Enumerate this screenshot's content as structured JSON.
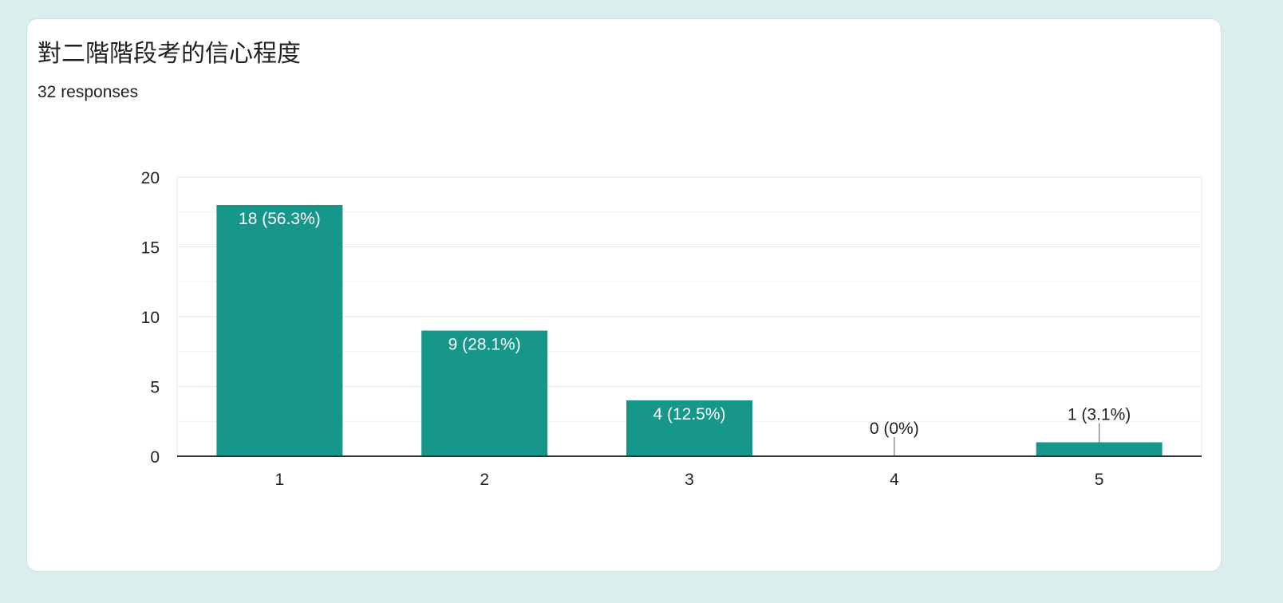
{
  "card": {
    "title": "對二階階段考的信心程度",
    "responses": "32 responses"
  },
  "colors": {
    "background": "#d9efee",
    "bar": "#17968a",
    "gridline": "#e6e6e6",
    "axis": "#333333"
  },
  "chart_data": {
    "type": "bar",
    "title": "對二階階段考的信心程度",
    "categories": [
      "1",
      "2",
      "3",
      "4",
      "5"
    ],
    "values": [
      18,
      9,
      4,
      0,
      1
    ],
    "data_labels": [
      "18 (56.3%)",
      "9 (28.1%)",
      "4 (12.5%)",
      "0 (0%)",
      "1 (3.1%)"
    ],
    "y_ticks": [
      "0",
      "5",
      "10",
      "15",
      "20"
    ],
    "ylim": [
      0,
      20
    ],
    "xlabel": "",
    "ylabel": "",
    "grid": true,
    "minor_grid": true,
    "legend": "none"
  }
}
